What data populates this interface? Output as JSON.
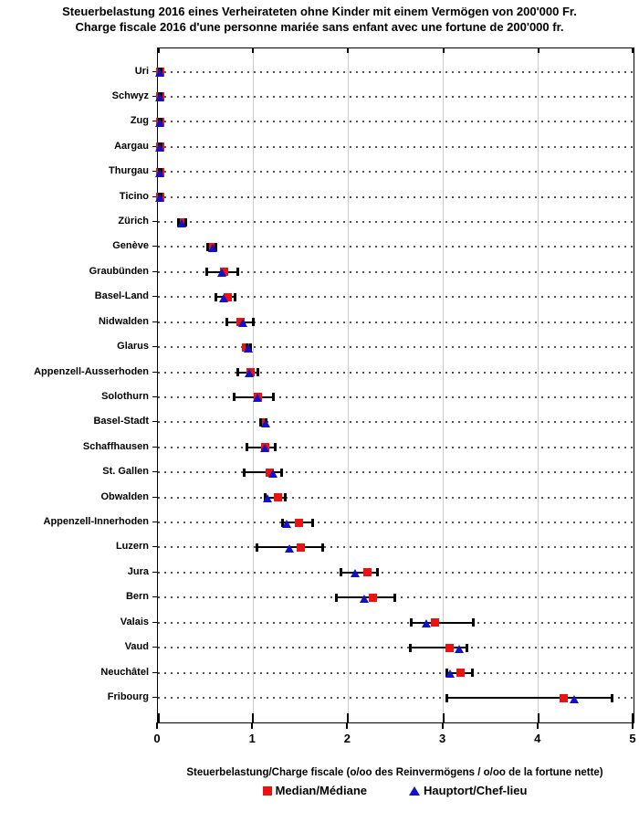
{
  "title": {
    "line1": "Steuerbelastung 2016 eines Verheirateten ohne Kinder mit einem Vermögen von 200'000 Fr.",
    "line2": "Charge fiscale 2016 d'une personne mariée sans enfant avec une fortune de 200'000 fr."
  },
  "axis": {
    "label": "Steuerbelastung/Charge fiscale (o/oo des Reinvermögens / o/oo de la fortune nette)",
    "tick_labels": [
      "0",
      "1",
      "2",
      "3",
      "4",
      "5"
    ]
  },
  "legend": {
    "median_label": "Median/Médiane",
    "hauptort_label": "Hauptort/Chef-lieu"
  },
  "colors": {
    "median": "#ee1111",
    "hauptort": "#1111cc",
    "range": "#000000",
    "grid": "#cccccc",
    "leader_dots": "#555555"
  },
  "chart_data": {
    "type": "scatter",
    "title": "Steuerbelastung 2016 eines Verheirateten ohne Kinder mit einem Vermögen von 200'000 Fr. / Charge fiscale 2016 d'une personne mariée sans enfant avec une fortune de 200'000 fr.",
    "xlabel": "Steuerbelastung/Charge fiscale (o/oo des Reinvermögens / o/oo de la fortune nette)",
    "xlim": [
      0,
      5
    ],
    "xticks": [
      0,
      1,
      2,
      3,
      4,
      5
    ],
    "grid": true,
    "legend_position": "bottom",
    "series": [
      {
        "name": "Median/Médiane",
        "marker": "red-square"
      },
      {
        "name": "Hauptort/Chef-lieu",
        "marker": "blue-triangle"
      }
    ],
    "cantons": [
      {
        "name": "Uri",
        "median": 0.02,
        "hauptort": 0.02,
        "min": 0.01,
        "max": 0.03
      },
      {
        "name": "Schwyz",
        "median": 0.02,
        "hauptort": 0.02,
        "min": 0.01,
        "max": 0.03
      },
      {
        "name": "Zug",
        "median": 0.02,
        "hauptort": 0.02,
        "min": 0.01,
        "max": 0.03
      },
      {
        "name": "Aargau",
        "median": 0.02,
        "hauptort": 0.02,
        "min": 0.01,
        "max": 0.03
      },
      {
        "name": "Thurgau",
        "median": 0.02,
        "hauptort": 0.02,
        "min": 0.01,
        "max": 0.03
      },
      {
        "name": "Ticino",
        "median": 0.02,
        "hauptort": 0.02,
        "min": 0.01,
        "max": 0.03
      },
      {
        "name": "Zürich",
        "median": 0.25,
        "hauptort": 0.25,
        "min": 0.22,
        "max": 0.29
      },
      {
        "name": "Genève",
        "median": 0.57,
        "hauptort": 0.58,
        "min": 0.52,
        "max": 0.61
      },
      {
        "name": "Graubünden",
        "median": 0.7,
        "hauptort": 0.67,
        "min": 0.51,
        "max": 0.84
      },
      {
        "name": "Basel-Land",
        "median": 0.73,
        "hauptort": 0.69,
        "min": 0.61,
        "max": 0.81
      },
      {
        "name": "Nidwalden",
        "median": 0.87,
        "hauptort": 0.89,
        "min": 0.72,
        "max": 1.0
      },
      {
        "name": "Glarus",
        "median": 0.93,
        "hauptort": 0.95,
        "min": 0.94,
        "max": 0.97
      },
      {
        "name": "Appenzell-Ausserhoden",
        "median": 0.97,
        "hauptort": 0.96,
        "min": 0.84,
        "max": 1.05
      },
      {
        "name": "Solothurn",
        "median": 1.05,
        "hauptort": 1.05,
        "min": 0.8,
        "max": 1.21
      },
      {
        "name": "Basel-Stadt",
        "median": 1.11,
        "hauptort": 1.13,
        "min": 1.08,
        "max": 1.14
      },
      {
        "name": "Schaffhausen",
        "median": 1.13,
        "hauptort": 1.12,
        "min": 0.94,
        "max": 1.23
      },
      {
        "name": "St. Gallen",
        "median": 1.18,
        "hauptort": 1.21,
        "min": 0.91,
        "max": 1.3
      },
      {
        "name": "Obwalden",
        "median": 1.26,
        "hauptort": 1.15,
        "min": 1.13,
        "max": 1.34
      },
      {
        "name": "Appenzell-Innerhoden",
        "median": 1.48,
        "hauptort": 1.35,
        "min": 1.31,
        "max": 1.63
      },
      {
        "name": "Luzern",
        "median": 1.5,
        "hauptort": 1.38,
        "min": 1.04,
        "max": 1.73
      },
      {
        "name": "Jura",
        "median": 2.2,
        "hauptort": 2.07,
        "min": 1.92,
        "max": 2.31
      },
      {
        "name": "Bern",
        "median": 2.26,
        "hauptort": 2.17,
        "min": 1.88,
        "max": 2.49
      },
      {
        "name": "Valais",
        "median": 2.91,
        "hauptort": 2.82,
        "min": 2.66,
        "max": 3.32
      },
      {
        "name": "Vaud",
        "median": 3.07,
        "hauptort": 3.17,
        "min": 2.65,
        "max": 3.25
      },
      {
        "name": "Neuchâtel",
        "median": 3.18,
        "hauptort": 3.07,
        "min": 3.04,
        "max": 3.31
      },
      {
        "name": "Fribourg",
        "median": 4.27,
        "hauptort": 4.38,
        "min": 3.04,
        "max": 4.77
      }
    ]
  }
}
